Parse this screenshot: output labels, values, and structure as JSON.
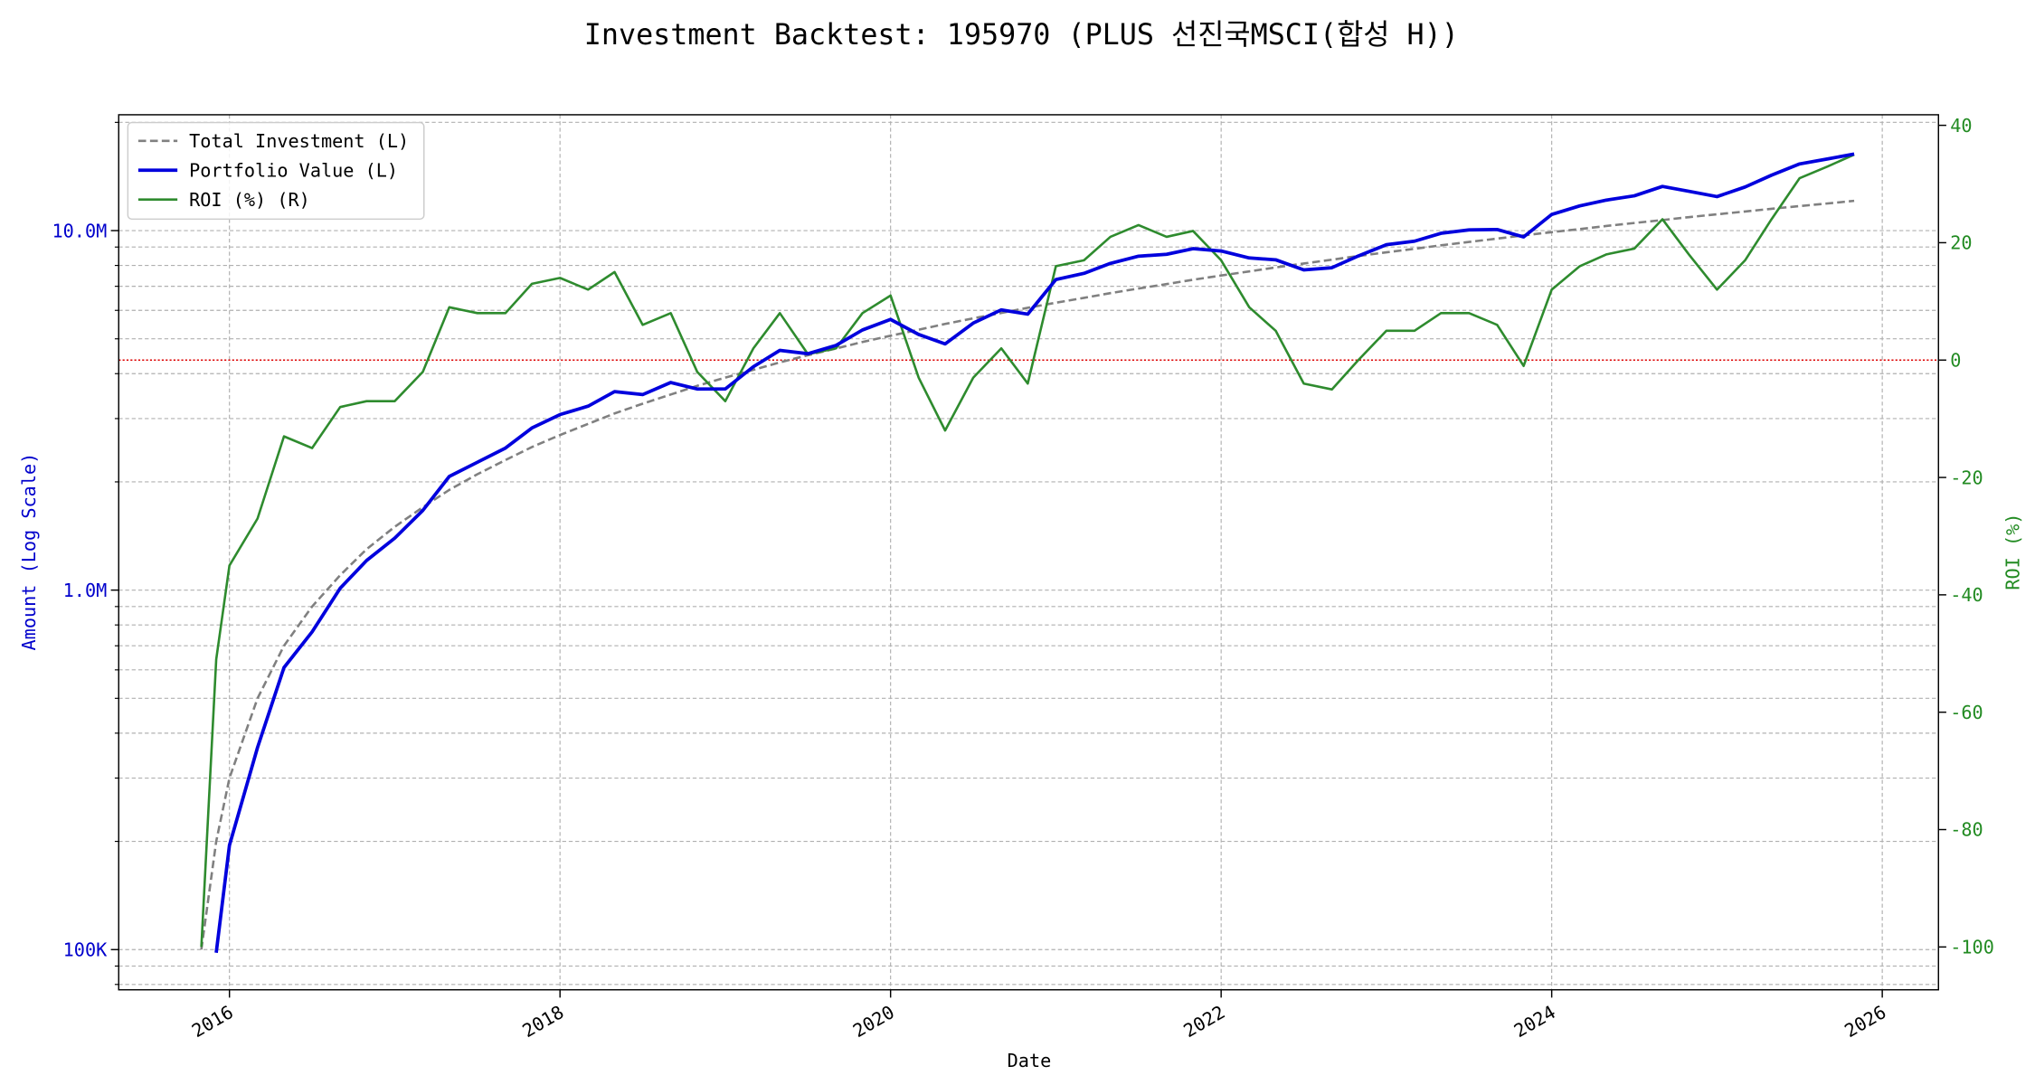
{
  "chart_data": {
    "type": "line",
    "title": "Investment Backtest: 195970 (PLUS 선진국MSCI(합성 H))",
    "xlabel": "Date",
    "ylabel": "Amount (Log Scale)",
    "y2label": "ROI (%)",
    "x": [
      2015.83,
      2015.92,
      2016.0,
      2016.17,
      2016.33,
      2016.5,
      2016.67,
      2016.83,
      2017.0,
      2017.17,
      2017.33,
      2017.5,
      2017.67,
      2017.83,
      2018.0,
      2018.17,
      2018.33,
      2018.5,
      2018.67,
      2018.83,
      2019.0,
      2019.17,
      2019.33,
      2019.5,
      2019.67,
      2019.83,
      2020.0,
      2020.17,
      2020.33,
      2020.5,
      2020.67,
      2020.83,
      2021.0,
      2021.17,
      2021.33,
      2021.5,
      2021.67,
      2021.83,
      2022.0,
      2022.17,
      2022.33,
      2022.5,
      2022.67,
      2022.83,
      2023.0,
      2023.17,
      2023.33,
      2023.5,
      2023.67,
      2023.83,
      2024.0,
      2024.17,
      2024.33,
      2024.5,
      2024.67,
      2024.83,
      2025.0,
      2025.17,
      2025.33,
      2025.5,
      2025.67,
      2025.83
    ],
    "series": [
      {
        "name": "Total Investment (L)",
        "color": "#808080",
        "dash": true,
        "axis": "y",
        "values": [
          100000,
          200000,
          300000,
          500000,
          700000,
          900000,
          1100000,
          1300000,
          1500000,
          1700000,
          1900000,
          2100000,
          2300000,
          2500000,
          2700000,
          2900000,
          3100000,
          3300000,
          3500000,
          3700000,
          3900000,
          4100000,
          4300000,
          4500000,
          4700000,
          4900000,
          5100000,
          5300000,
          5500000,
          5700000,
          5900000,
          6100000,
          6300000,
          6500000,
          6700000,
          6900000,
          7100000,
          7300000,
          7500000,
          7700000,
          7900000,
          8100000,
          8300000,
          8500000,
          8700000,
          8900000,
          9100000,
          9300000,
          9500000,
          9700000,
          9900000,
          10100000,
          10300000,
          10500000,
          10700000,
          10900000,
          11100000,
          11300000,
          11500000,
          11700000,
          11900000,
          12100000
        ]
      },
      {
        "name": "Portfolio Value (L)",
        "color": "#0000dd",
        "dash": false,
        "axis": "y",
        "values": [
          null,
          98000,
          195000,
          365000,
          609000,
          765000,
          1012000,
          1209000,
          1395000,
          1666000,
          2071000,
          2268000,
          2484000,
          2825000,
          3078000,
          3248000,
          3565000,
          3498000,
          3780000,
          3626000,
          3627000,
          4182000,
          4644000,
          4545000,
          4794000,
          5292000,
          5661000,
          5141000,
          4840000,
          5529000,
          6018000,
          5856000,
          7308000,
          7605000,
          8107000,
          8487000,
          8591000,
          8906000,
          8775000,
          8393000,
          8295000,
          7776000,
          7885000,
          8500000,
          9135000,
          9345000,
          9828000,
          10044000,
          10070000,
          9603000,
          11088000,
          11716000,
          12154000,
          12495000,
          13268000,
          12862000,
          12432000,
          13221000,
          14260000,
          15327000,
          15827000,
          16335000
        ]
      },
      {
        "name": "ROI (%) (R)",
        "color": "#2e8b2e",
        "dash": false,
        "axis": "y2",
        "values": [
          -100,
          -51,
          -35,
          -27,
          -13,
          -15,
          -8,
          -7,
          -7,
          -2,
          9,
          8,
          8,
          13,
          14,
          12,
          15,
          6,
          8,
          -2,
          -7,
          2,
          8,
          1,
          2,
          8,
          11,
          -3,
          -12,
          -3,
          2,
          -4,
          16,
          17,
          21,
          23,
          21,
          22,
          17,
          9,
          5,
          -4,
          -5,
          0,
          5,
          5,
          8,
          8,
          6,
          -1,
          12,
          16,
          18,
          19,
          24,
          18,
          12,
          17,
          24,
          31,
          33,
          35
        ]
      }
    ],
    "xlim": [
      2015.33,
      2026.34
    ],
    "xticks": [
      2016,
      2018,
      2020,
      2022,
      2024,
      2026
    ],
    "ylim": [
      77300,
      21000000
    ],
    "yscale": "log",
    "yticks": [
      {
        "value": 100000,
        "label": "100K"
      },
      {
        "value": 1000000,
        "label": "1.0M"
      },
      {
        "value": 10000000,
        "label": "10.0M"
      }
    ],
    "yminorticks": [
      80000,
      90000,
      200000,
      300000,
      400000,
      500000,
      600000,
      700000,
      800000,
      900000,
      2000000,
      3000000,
      4000000,
      5000000,
      6000000,
      7000000,
      8000000,
      9000000,
      20000000
    ],
    "y2lim": [
      -107.3,
      41.8
    ],
    "y2ticks": [
      -100,
      -80,
      -60,
      -40,
      -20,
      0,
      20,
      40
    ],
    "y2_hline": {
      "value": 0,
      "color": "#dd0000"
    },
    "ycolor": "#0000cc",
    "y2color": "#228b22",
    "grid": true,
    "legend": "upper left"
  }
}
